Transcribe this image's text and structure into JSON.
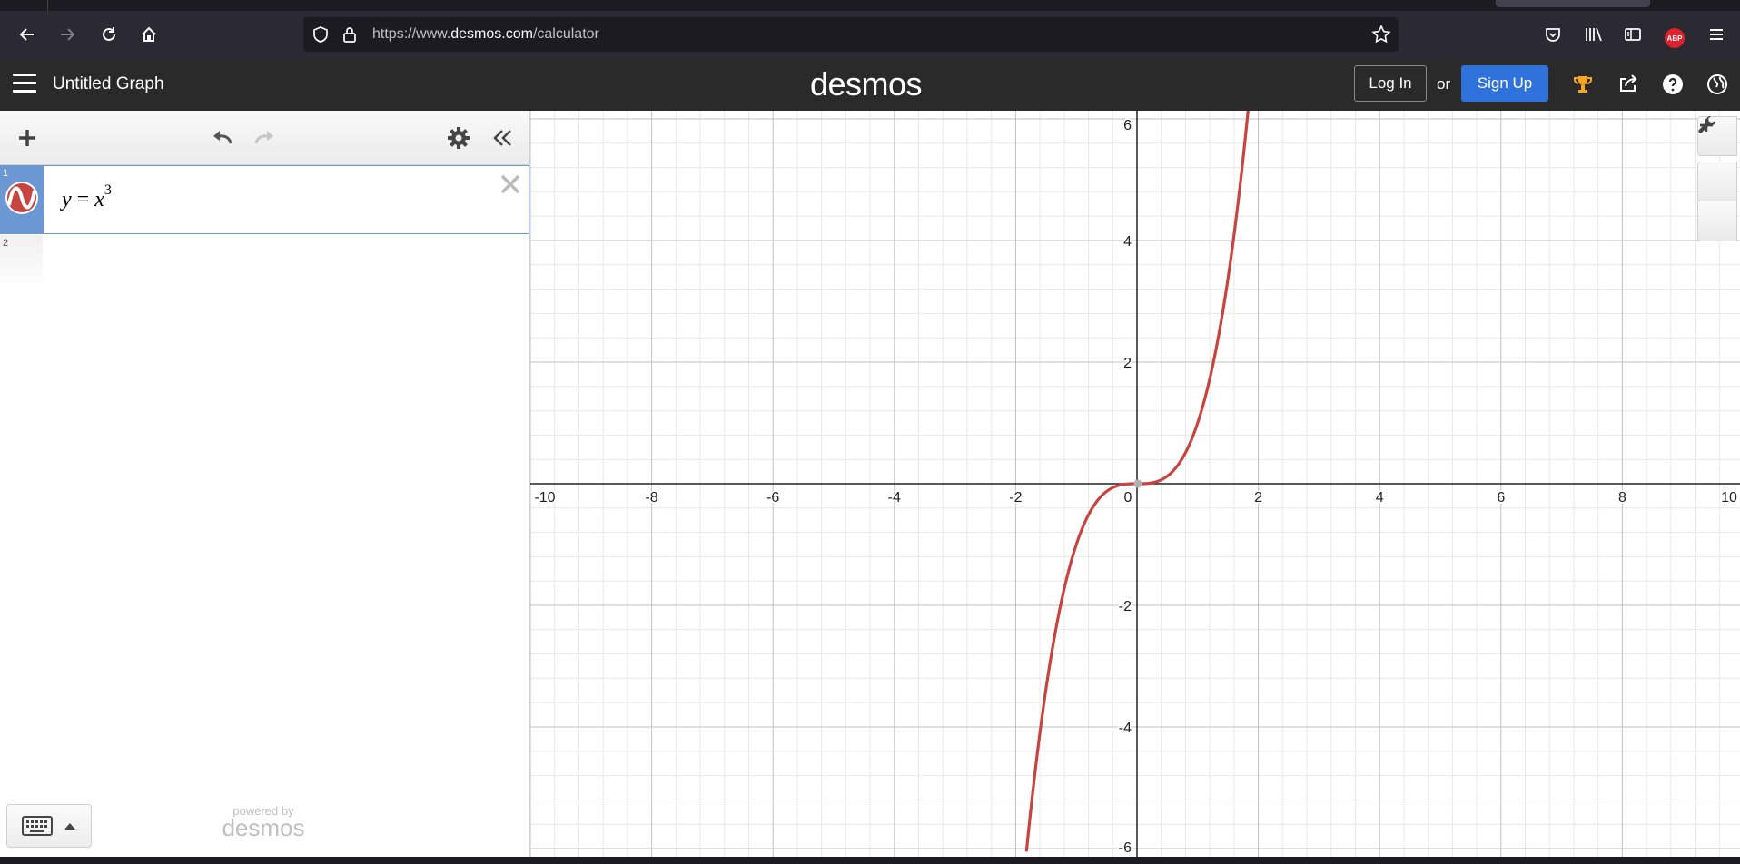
{
  "browser": {
    "url_prefix": "https://www.",
    "url_domain": "desmos.com",
    "url_path": "/calculator",
    "adblock_label": "ABP"
  },
  "header": {
    "graph_title": "Untitled Graph",
    "brand": "desmos",
    "login_label": "Log In",
    "or_text": "or",
    "signup_label": "Sign Up",
    "signup_color": "#2f72dc"
  },
  "expressions": [
    {
      "index": "1",
      "latex_lhs": "y",
      "latex_eq": " = ",
      "latex_base": "x",
      "latex_exp": "3",
      "color": "#c74440"
    },
    {
      "index": "2"
    }
  ],
  "footer": {
    "powered_small": "powered by",
    "powered_brand": "desmos"
  },
  "chart_data": {
    "type": "line",
    "function": "y = x^3",
    "xlim": [
      -10,
      10
    ],
    "ylim": [
      -6,
      6
    ],
    "x_ticks": [
      "-10",
      "-8",
      "-6",
      "-4",
      "-2",
      "0",
      "2",
      "4",
      "6",
      "8",
      "10"
    ],
    "y_ticks": [
      "6",
      "4",
      "2",
      "-2",
      "-4",
      "-6"
    ],
    "major_step": 2,
    "minor_step": 0.4,
    "grid": true,
    "series": [
      {
        "color": "#c74440",
        "x": [
          -1.82,
          -1.6,
          -1.4,
          -1.2,
          -1.0,
          -0.8,
          -0.6,
          -0.4,
          -0.2,
          0,
          0.2,
          0.4,
          0.6,
          0.8,
          1.0,
          1.2,
          1.4,
          1.6,
          1.86
        ],
        "y": [
          -6.03,
          -4.1,
          -2.74,
          -1.73,
          -1.0,
          -0.51,
          -0.22,
          -0.06,
          -0.01,
          0,
          0.01,
          0.06,
          0.22,
          0.51,
          1.0,
          1.73,
          2.74,
          4.1,
          6.43
        ]
      }
    ]
  }
}
